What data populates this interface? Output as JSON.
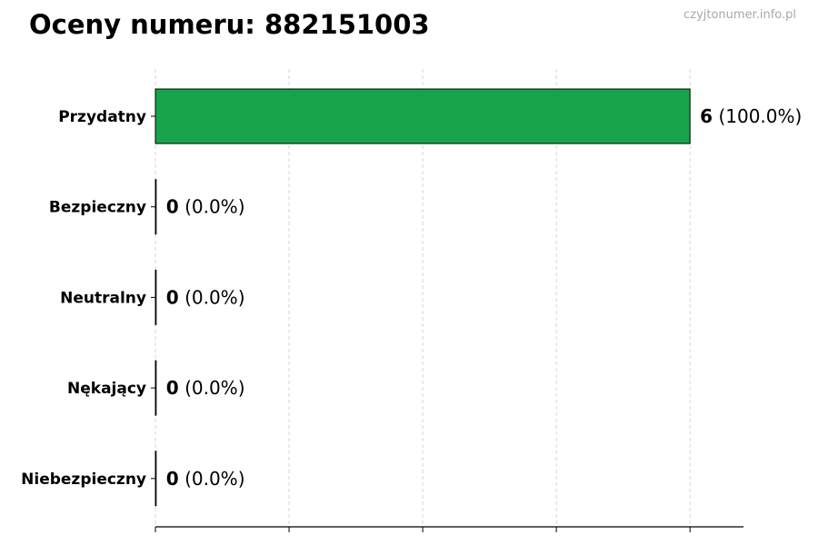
{
  "title": "Oceny numeru: 882151003",
  "watermark": "czyjtonumer.info.pl",
  "chart_data": {
    "type": "bar",
    "orientation": "horizontal",
    "title": "Oceny numeru: 882151003",
    "categories": [
      "Przydatny",
      "Bezpieczny",
      "Neutralny",
      "Nękający",
      "Niebezpieczny"
    ],
    "values": [
      6,
      0,
      0,
      0,
      0
    ],
    "data_labels": [
      {
        "count": "6",
        "percent": "(100.0%)"
      },
      {
        "count": "0",
        "percent": "(0.0%)"
      },
      {
        "count": "0",
        "percent": "(0.0%)"
      },
      {
        "count": "0",
        "percent": "(0.0%)"
      },
      {
        "count": "0",
        "percent": "(0.0%)"
      }
    ],
    "xlim": [
      0,
      6.6
    ],
    "xticks": [
      0,
      1.5,
      3,
      4.5,
      6
    ],
    "xtick_labels_shown": false,
    "grid": "vertical dashed",
    "bar_color": "#17a34a",
    "bar_edge_color": "#000000",
    "xlabel": "",
    "ylabel": ""
  }
}
